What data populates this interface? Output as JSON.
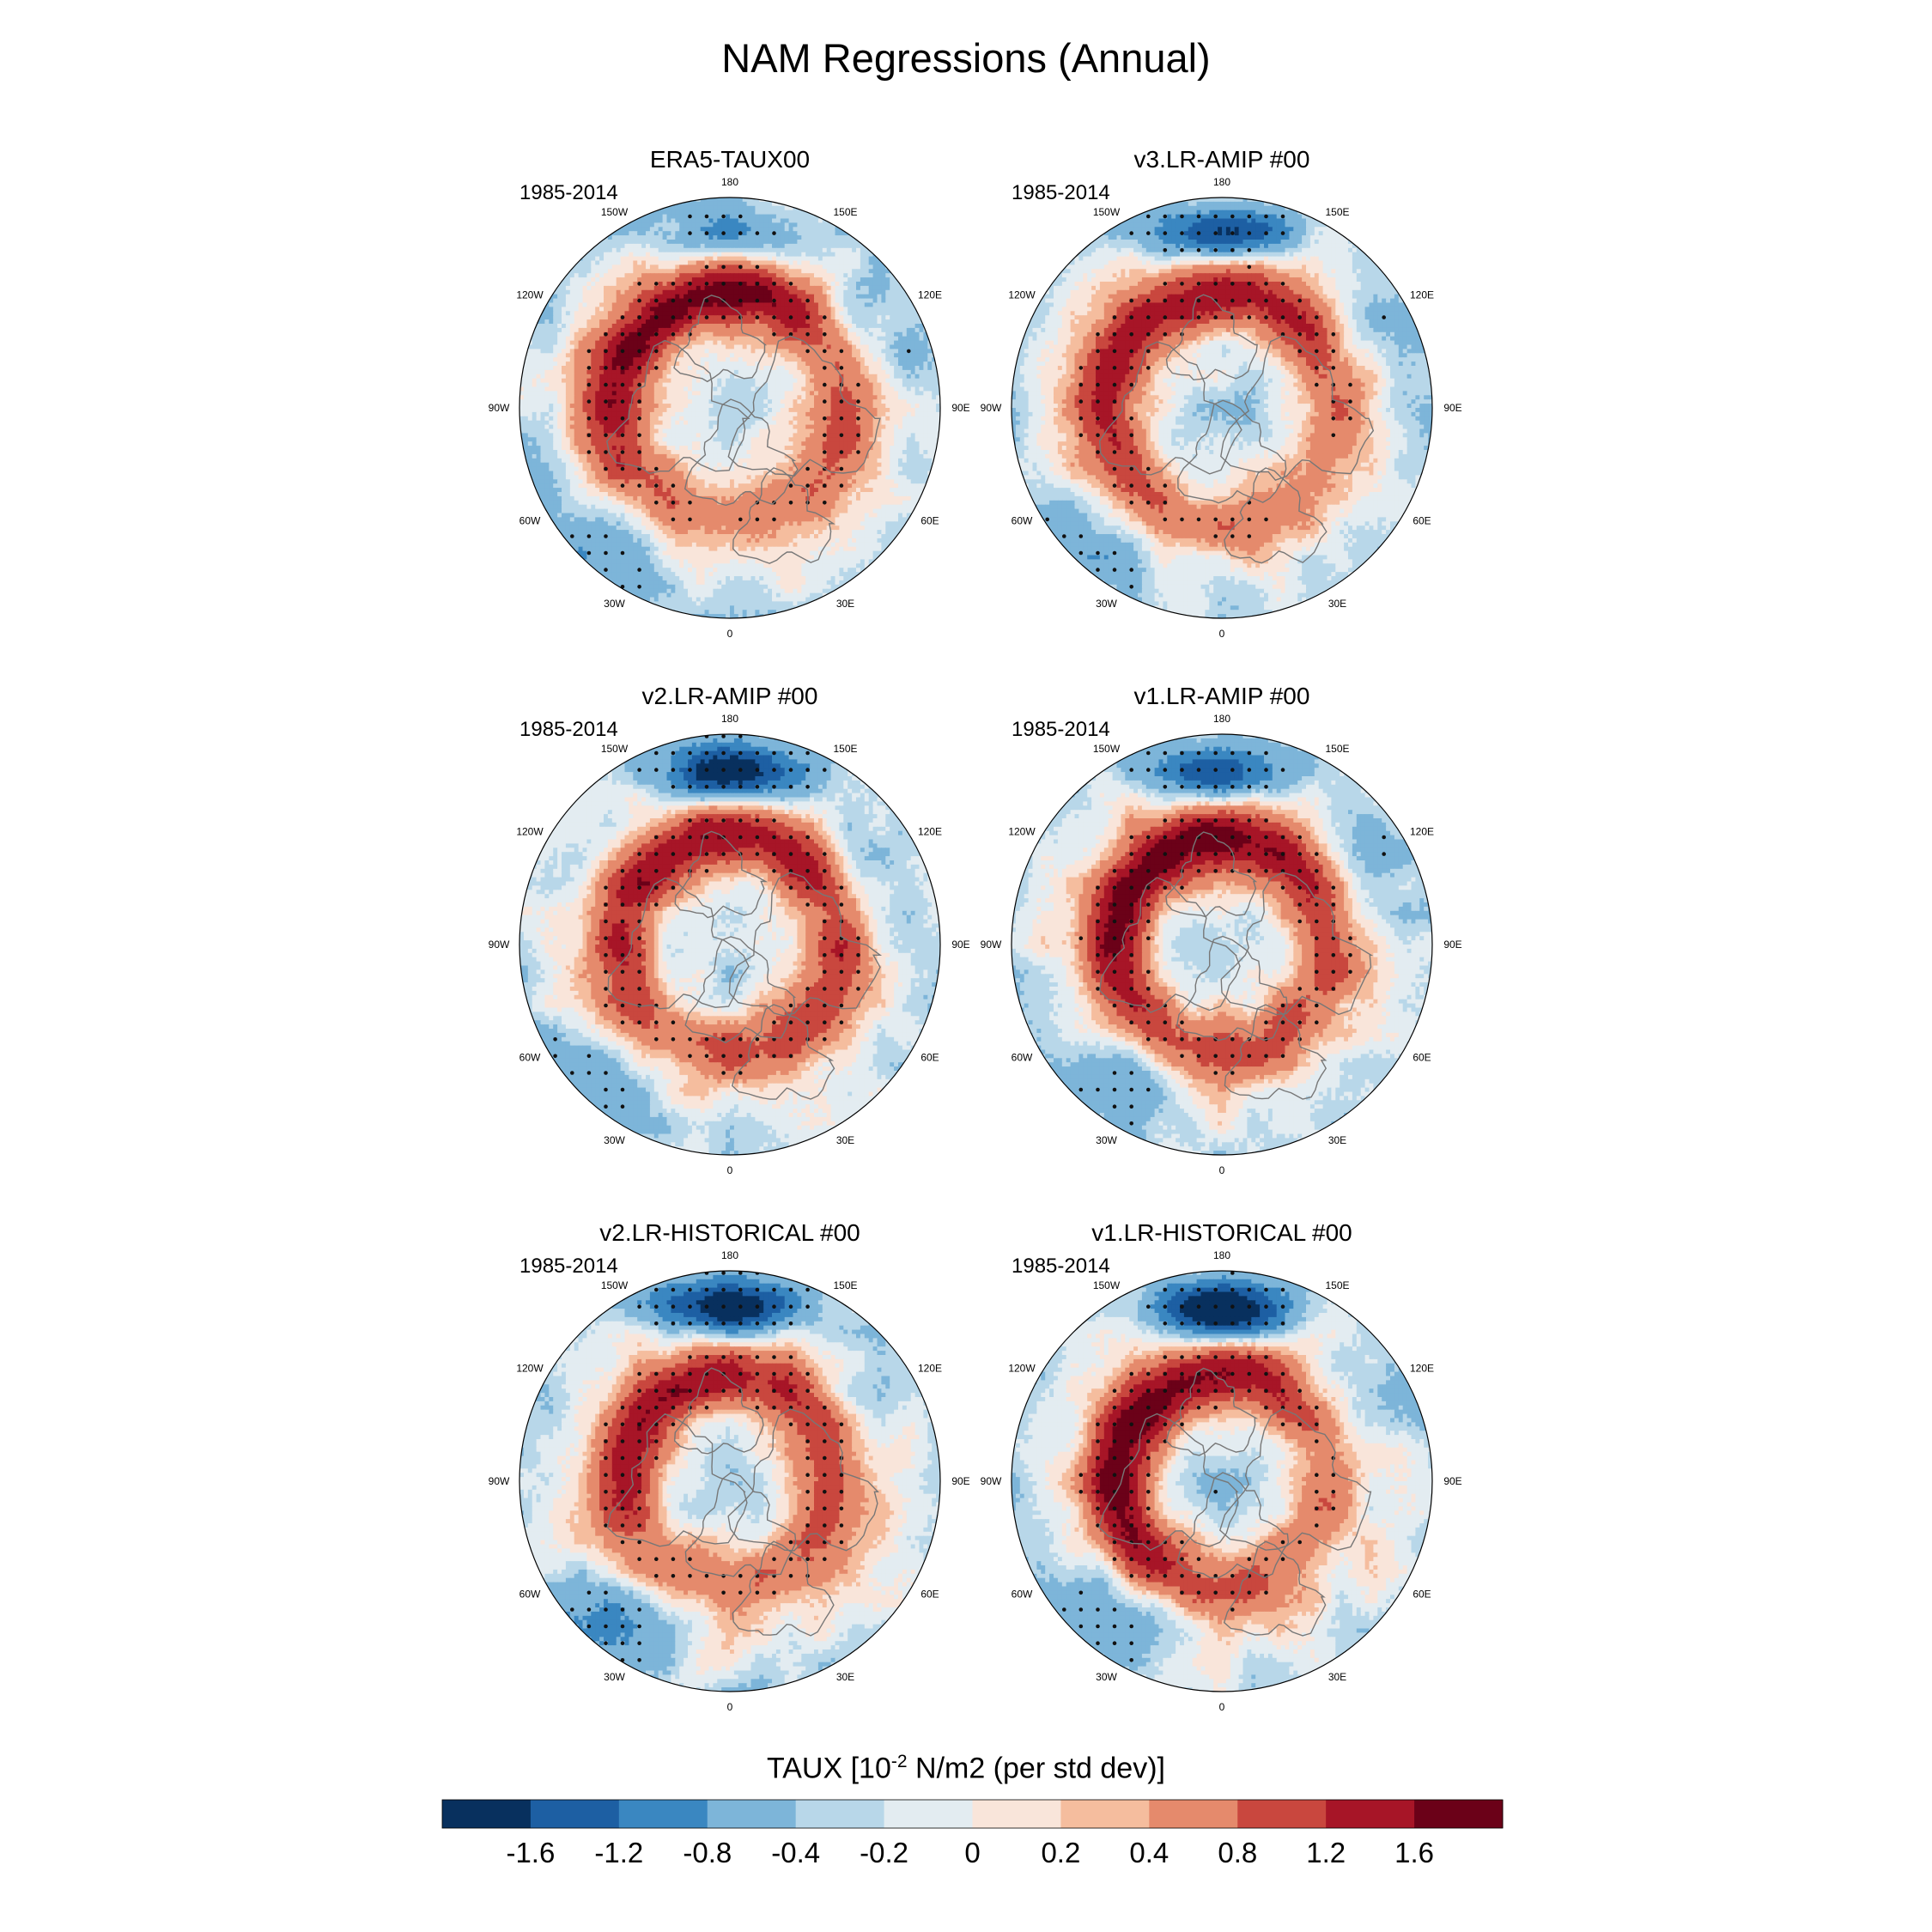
{
  "chart_data": {
    "type": "heatmap",
    "projection": "north-polar-stereographic",
    "title": "NAM Regressions (Annual)",
    "colorbar": {
      "label_prefix": "TAUX [10",
      "label_exponent": "-2",
      "label_suffix": " N/m2 (per std dev)]",
      "levels": [
        -1.6,
        -1.2,
        -0.8,
        -0.4,
        -0.2,
        0,
        0.2,
        0.4,
        0.8,
        1.2,
        1.6
      ],
      "tick_labels": [
        "-1.6",
        "-1.2",
        "-0.8",
        "-0.4",
        "-0.2",
        "0",
        "0.2",
        "0.4",
        "0.8",
        "1.2",
        "1.6"
      ],
      "colors": [
        "#08305e",
        "#1d5fa3",
        "#3a87c1",
        "#7db5d9",
        "#b8d7e9",
        "#e3ecf1",
        "#f9e5da",
        "#f5bd9e",
        "#e58a6c",
        "#c9473e",
        "#a71527",
        "#6b0118"
      ]
    },
    "longitude_labels": [
      "180",
      "150E",
      "120E",
      "90E",
      "60E",
      "30E",
      "0",
      "30W",
      "60W",
      "90W",
      "120W",
      "150W"
    ],
    "panels": [
      {
        "title": "ERA5-TAUX00",
        "period": "1985-2014",
        "pattern": {
          "ring_strength": 1.0,
          "ring_radius": 0.55,
          "ring_phase_deg": 200,
          "ring_asym": 0.55,
          "pacific_neg": 0.55,
          "atlantic_neg": 0.65,
          "asia_neg": 0.7
        }
      },
      {
        "title": "v3.LR-AMIP  #00",
        "period": "1985-2014",
        "pattern": {
          "ring_strength": 0.85,
          "ring_radius": 0.55,
          "ring_phase_deg": 200,
          "ring_asym": 0.5,
          "pacific_neg": 1.0,
          "atlantic_neg": 0.6,
          "asia_neg": 0.5
        }
      },
      {
        "title": "v2.LR-AMIP  #00",
        "period": "1985-2014",
        "pattern": {
          "ring_strength": 0.95,
          "ring_radius": 0.52,
          "ring_phase_deg": 190,
          "ring_asym": 0.3,
          "pacific_neg": 1.25,
          "atlantic_neg": 0.55,
          "asia_neg": 0.4
        }
      },
      {
        "title": "v1.LR-AMIP  #00",
        "period": "1985-2014",
        "pattern": {
          "ring_strength": 1.15,
          "ring_radius": 0.5,
          "ring_phase_deg": 210,
          "ring_asym": 0.45,
          "pacific_neg": 1.0,
          "atlantic_neg": 0.75,
          "asia_neg": 0.6
        }
      },
      {
        "title": "v2.LR-HISTORICAL  #00",
        "period": "1985-2014",
        "pattern": {
          "ring_strength": 0.85,
          "ring_radius": 0.5,
          "ring_phase_deg": 195,
          "ring_asym": 0.45,
          "pacific_neg": 1.2,
          "atlantic_neg": 0.75,
          "asia_neg": 0.35
        }
      },
      {
        "title": "v1.LR-HISTORICAL  #00",
        "period": "1985-2014",
        "pattern": {
          "ring_strength": 1.05,
          "ring_radius": 0.5,
          "ring_phase_deg": 240,
          "ring_asym": 0.6,
          "pacific_neg": 1.35,
          "atlantic_neg": 0.7,
          "asia_neg": 0.35
        }
      }
    ]
  }
}
